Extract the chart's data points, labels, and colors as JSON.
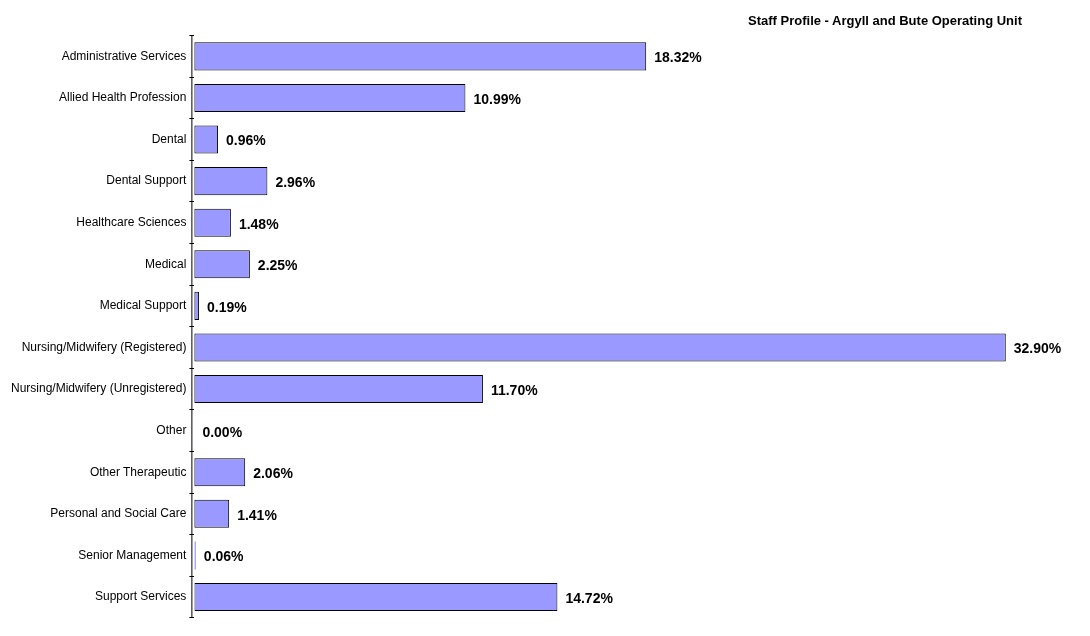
{
  "chart_data": {
    "type": "bar",
    "orientation": "horizontal",
    "title": "Staff Profile - Argyll and Bute Operating Unit",
    "categories": [
      "Administrative Services",
      "Allied Health Profession",
      "Dental",
      "Dental Support",
      "Healthcare Sciences",
      "Medical",
      "Medical Support",
      "Nursing/Midwifery (Registered)",
      "Nursing/Midwifery (Unregistered)",
      "Other",
      "Other Therapeutic",
      "Personal and Social Care",
      "Senior Management",
      "Support Services"
    ],
    "values": [
      18.32,
      10.99,
      0.96,
      2.96,
      1.48,
      2.25,
      0.19,
      32.9,
      11.7,
      0.0,
      2.06,
      1.41,
      0.06,
      14.72
    ],
    "value_labels": [
      "18.32%",
      "10.99%",
      "0.96%",
      "2.96%",
      "1.48%",
      "2.25%",
      "0.19%",
      "32.90%",
      "11.70%",
      "0.00%",
      "2.06%",
      "1.41%",
      "0.06%",
      "14.72%"
    ],
    "color": "#9999ff",
    "grid": false,
    "legend": false
  }
}
